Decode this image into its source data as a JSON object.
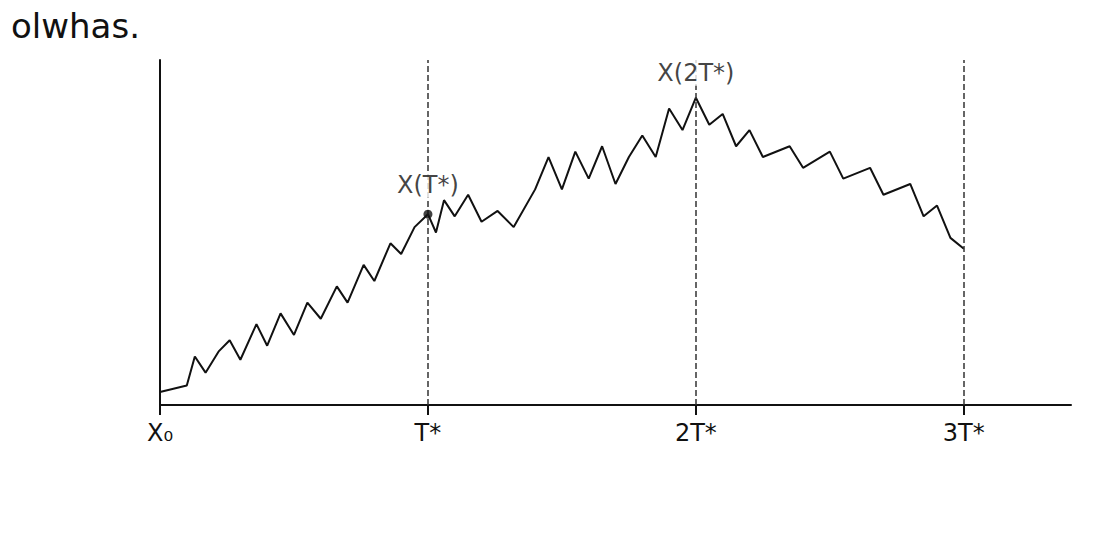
{
  "chart_data": {
    "type": "line",
    "title": "olwhas.",
    "x": [
      0,
      0.05,
      0.1,
      0.13,
      0.17,
      0.22,
      0.26,
      0.3,
      0.36,
      0.4,
      0.45,
      0.5,
      0.55,
      0.6,
      0.66,
      0.7,
      0.76,
      0.8,
      0.86,
      0.9,
      0.95,
      1.0,
      1.03,
      1.06,
      1.1,
      1.15,
      1.2,
      1.26,
      1.32,
      1.4,
      1.45,
      1.5,
      1.55,
      1.6,
      1.65,
      1.7,
      1.75,
      1.8,
      1.85,
      1.9,
      1.95,
      2.0,
      2.05,
      2.1,
      2.15,
      2.2,
      2.25,
      2.35,
      2.4,
      2.5,
      2.55,
      2.65,
      2.7,
      2.8,
      2.85,
      2.9,
      2.95,
      3.0
    ],
    "values": [
      0.12,
      0.15,
      0.18,
      0.45,
      0.3,
      0.5,
      0.6,
      0.42,
      0.75,
      0.55,
      0.85,
      0.65,
      0.95,
      0.8,
      1.1,
      0.95,
      1.3,
      1.15,
      1.5,
      1.4,
      1.65,
      1.77,
      1.6,
      1.9,
      1.75,
      1.95,
      1.7,
      1.8,
      1.65,
      2.0,
      2.3,
      2.0,
      2.35,
      2.1,
      2.4,
      2.05,
      2.3,
      2.5,
      2.3,
      2.75,
      2.55,
      2.85,
      2.6,
      2.7,
      2.4,
      2.55,
      2.3,
      2.4,
      2.2,
      2.35,
      2.1,
      2.2,
      1.95,
      2.05,
      1.75,
      1.85,
      1.55,
      1.45
    ],
    "color": "#111111",
    "xlim": [
      0,
      3.4
    ],
    "xticks": [
      {
        "value": 0,
        "label": "X₀"
      },
      {
        "value": 1,
        "label": "T*"
      },
      {
        "value": 2,
        "label": "2T*"
      },
      {
        "value": 3,
        "label": "3T*"
      }
    ],
    "ylim": [
      0,
      3.2
    ],
    "yticks": [],
    "tick_labels": "x",
    "grid": false,
    "annotations": [
      {
        "text": "X(T*)",
        "x": 1,
        "y": 1.77,
        "marker": "circle"
      },
      {
        "text": "X(2T*)",
        "x": 2,
        "y": 2.85,
        "marker": "none"
      }
    ]
  }
}
